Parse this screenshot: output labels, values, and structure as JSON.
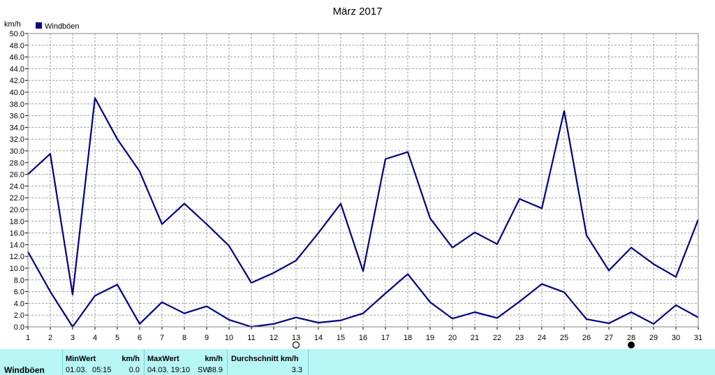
{
  "chart_data": {
    "type": "line",
    "title": "März 2017",
    "ylabel": "km/h",
    "legend": "Windböen",
    "legend_position": "top-left",
    "grid": true,
    "ylim": [
      0,
      50
    ],
    "xlim": [
      1,
      31
    ],
    "y_ticks": [
      "0.0",
      "2.0",
      "4.0",
      "6.0",
      "8.0",
      "10.0",
      "12.0",
      "14.0",
      "16.0",
      "18.0",
      "20.0",
      "22.0",
      "24.0",
      "26.0",
      "28.0",
      "30.0",
      "32.0",
      "34.0",
      "36.0",
      "38.0",
      "40.0",
      "42.0",
      "44.0",
      "46.0",
      "48.0",
      "50.0"
    ],
    "x": [
      1,
      2,
      3,
      4,
      5,
      6,
      7,
      8,
      9,
      10,
      11,
      12,
      13,
      14,
      15,
      16,
      17,
      18,
      19,
      20,
      21,
      22,
      23,
      24,
      25,
      26,
      27,
      28,
      29,
      30,
      31
    ],
    "series": [
      {
        "name": "Windböen",
        "values": [
          26.0,
          29.5,
          5.5,
          39.0,
          32.0,
          26.5,
          17.5,
          21.0,
          17.5,
          13.8,
          7.5,
          9.2,
          11.3,
          16.0,
          21.0,
          9.5,
          28.6,
          29.8,
          18.5,
          13.5,
          16.1,
          14.1,
          21.8,
          20.2,
          36.8,
          15.6,
          9.6,
          13.5,
          10.7,
          8.5,
          18.3
        ]
      },
      {
        "name": "Windböen",
        "values": [
          12.8,
          6.0,
          0.0,
          5.3,
          7.2,
          0.5,
          4.2,
          2.3,
          3.5,
          1.2,
          0.0,
          0.5,
          1.6,
          0.7,
          1.1,
          2.3,
          5.7,
          9.0,
          4.2,
          1.4,
          2.5,
          1.5,
          4.3,
          7.3,
          5.9,
          1.3,
          0.6,
          2.5,
          0.5,
          3.7,
          1.6
        ]
      }
    ],
    "annotations": [
      {
        "x": 13,
        "symbol": "full-moon-outline"
      },
      {
        "x": 28,
        "symbol": "new-moon-filled"
      }
    ],
    "colors": {
      "line": "#000080",
      "grid": "#a0a0a0",
      "legend": "#000080"
    }
  },
  "stats": {
    "row_label": "Windböen",
    "min": {
      "header": "MinWert",
      "unit": "km/h",
      "date": "01.03.",
      "time": "05:15",
      "value": "0.0"
    },
    "max": {
      "header": "MaxWert",
      "unit": "km/h",
      "datetime": "04.03. 19:10",
      "direction": "SW",
      "value": "38.9"
    },
    "avg": {
      "header": "Durchschnitt km/h",
      "value": "3.3"
    },
    "background": "#b8f5f5"
  }
}
